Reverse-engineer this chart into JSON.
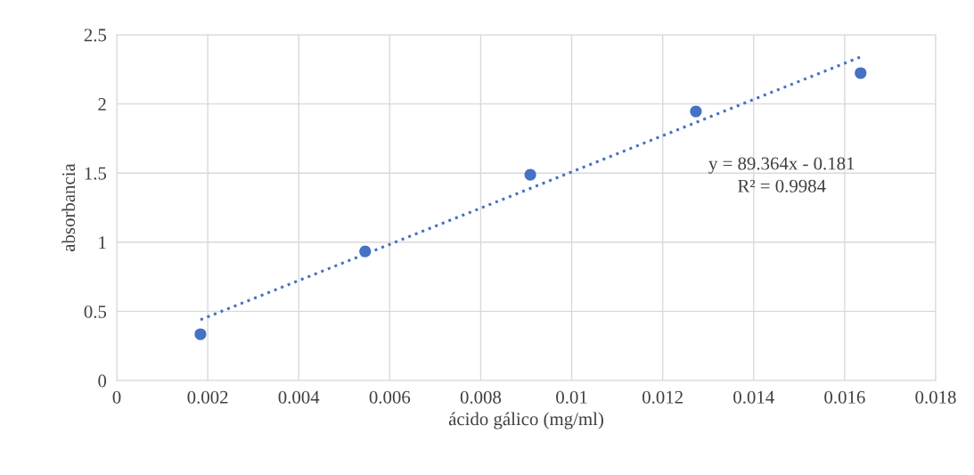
{
  "chart_data": {
    "type": "scatter",
    "xlabel": "ácido gálico (mg/ml)",
    "ylabel": "absorbancia",
    "series": [
      {
        "color": "#4472c4",
        "marker": "circle",
        "x": [
          0.00184,
          0.00546,
          0.00909,
          0.01273,
          0.01635
        ],
        "values": [
          0.335,
          0.934,
          1.488,
          1.946,
          2.223
        ]
      },
      {
        "type": "line",
        "color": "#4472c4",
        "line_style": "dotted",
        "marker": "none",
        "x": [
          0.00184,
          0.01635
        ],
        "values": [
          0.44,
          2.34
        ]
      }
    ],
    "annotations": [
      "y = 89.364x - 0.181",
      "R² = 0.9984"
    ],
    "xlim": [
      0,
      0.018
    ],
    "xticks": [
      0,
      0.002,
      0.004,
      0.006,
      0.008,
      0.01,
      0.012,
      0.014,
      0.016,
      0.018
    ],
    "ylim": [
      0,
      2.5
    ],
    "yticks": [
      0,
      0.5,
      1,
      1.5,
      2,
      2.5
    ],
    "grid": true,
    "legend": false
  }
}
